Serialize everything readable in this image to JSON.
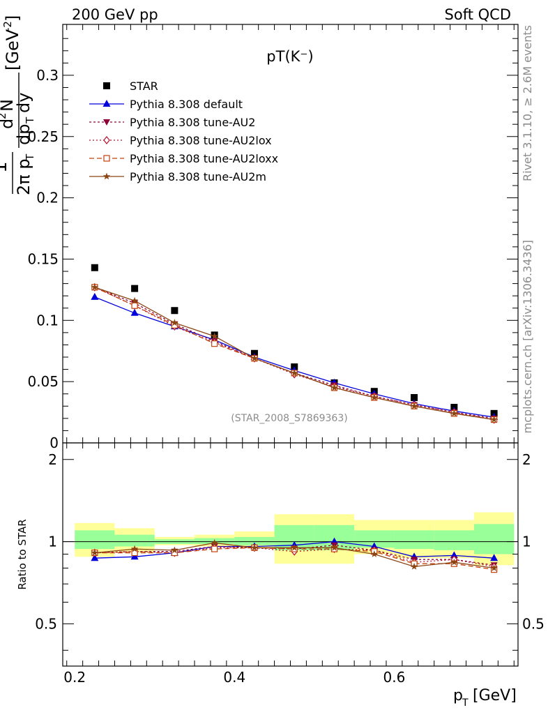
{
  "header": {
    "left": "200 GeV pp",
    "right": "Soft QCD"
  },
  "side_labels": {
    "top": "Rivet 3.1.10, ≥ 2.6M events",
    "bottom": "mcplots.cern.ch [arXiv:1306.3436]"
  },
  "ratio_panel": {
    "ylabel": "Ratio to STAR",
    "yticks": [
      "0.5",
      "1",
      "2"
    ]
  },
  "chart_data": {
    "type": "scatter",
    "title": "pT(K⁻)",
    "watermark": "(STAR_2008_S7869363)",
    "xlabel": "p_T [GeV]",
    "ylabel": "1/(2π p_T) d²N/(dp_T dy) [GeV⁻²]",
    "xlim": [
      0.185,
      0.755
    ],
    "ylim": [
      0,
      0.3415
    ],
    "yticks": [
      "0",
      "0.05",
      "0.1",
      "0.15",
      "0.2",
      "0.25",
      "0.3"
    ],
    "xticks": [
      "0.2",
      "0.4",
      "0.6"
    ],
    "ratio_ylim": [
      0.35,
      2.3
    ],
    "x": [
      0.225,
      0.275,
      0.325,
      0.375,
      0.425,
      0.475,
      0.525,
      0.575,
      0.625,
      0.675,
      0.725
    ],
    "bin_edges": [
      0.2,
      0.25,
      0.3,
      0.35,
      0.4,
      0.45,
      0.5,
      0.55,
      0.6,
      0.65,
      0.7,
      0.75
    ],
    "legend_position": "top-left",
    "series": [
      {
        "name": "STAR",
        "color": "#000000",
        "marker": "square",
        "values": [
          0.143,
          0.126,
          0.108,
          0.088,
          0.073,
          0.062,
          0.049,
          0.042,
          0.037,
          0.029,
          0.024
        ]
      },
      {
        "name": "Pythia 8.308 default",
        "color": "#0000dd",
        "marker": "triangle-up",
        "dash": "",
        "values": [
          0.119,
          0.106,
          0.095,
          0.084,
          0.07,
          0.059,
          0.049,
          0.04,
          0.032,
          0.026,
          0.021
        ]
      },
      {
        "name": "Pythia 8.308 tune-AU2",
        "color": "#8b0037",
        "marker": "triangle-down",
        "dash": "3,3",
        "values": [
          0.127,
          0.114,
          0.097,
          0.083,
          0.069,
          0.057,
          0.047,
          0.038,
          0.031,
          0.025,
          0.02
        ]
      },
      {
        "name": "Pythia 8.308 tune-AU2lox",
        "color": "#b3122e",
        "marker": "diamond",
        "dash": "2,3",
        "values": [
          0.127,
          0.112,
          0.095,
          0.082,
          0.069,
          0.056,
          0.046,
          0.038,
          0.031,
          0.025,
          0.019
        ]
      },
      {
        "name": "Pythia 8.308 tune-AU2loxx",
        "color": "#c4400a",
        "marker": "open-square",
        "dash": "7,4",
        "values": [
          0.127,
          0.112,
          0.096,
          0.081,
          0.069,
          0.057,
          0.045,
          0.037,
          0.03,
          0.024,
          0.019
        ]
      },
      {
        "name": "Pythia 8.308 tune-AU2m",
        "color": "#8b4513",
        "marker": "star",
        "dash": "",
        "values": [
          0.127,
          0.116,
          0.098,
          0.087,
          0.069,
          0.057,
          0.045,
          0.037,
          0.03,
          0.024,
          0.019
        ]
      }
    ],
    "ratio_series": [
      {
        "name": "Pythia 8.308 default",
        "values": [
          0.87,
          0.88,
          0.91,
          0.96,
          0.96,
          0.97,
          1.0,
          0.96,
          0.88,
          0.89,
          0.87
        ]
      },
      {
        "name": "Pythia 8.308 tune-AU2",
        "values": [
          0.91,
          0.92,
          0.92,
          0.96,
          0.95,
          0.94,
          0.97,
          0.93,
          0.86,
          0.86,
          0.82
        ]
      },
      {
        "name": "Pythia 8.308 tune-AU2lox",
        "values": [
          0.91,
          0.92,
          0.91,
          0.95,
          0.95,
          0.92,
          0.94,
          0.93,
          0.84,
          0.86,
          0.81
        ]
      },
      {
        "name": "Pythia 8.308 tune-AU2loxx",
        "values": [
          0.91,
          0.91,
          0.91,
          0.94,
          0.95,
          0.94,
          0.94,
          0.92,
          0.83,
          0.83,
          0.79
        ]
      },
      {
        "name": "Pythia 8.308 tune-AU2m",
        "values": [
          0.91,
          0.94,
          0.93,
          0.99,
          0.95,
          0.95,
          0.95,
          0.9,
          0.81,
          0.84,
          0.8
        ]
      }
    ],
    "band_outer": [
      [
        0.88,
        1.17
      ],
      [
        0.91,
        1.12
      ],
      [
        0.97,
        1.04
      ],
      [
        0.96,
        1.06
      ],
      [
        0.95,
        1.09
      ],
      [
        0.83,
        1.26
      ],
      [
        0.83,
        1.26
      ],
      [
        0.9,
        1.2
      ],
      [
        0.87,
        1.2
      ],
      [
        0.87,
        1.2
      ],
      [
        0.82,
        1.28
      ]
    ],
    "band_inner": [
      [
        0.94,
        1.1
      ],
      [
        0.96,
        1.06
      ],
      [
        0.98,
        1.02
      ],
      [
        0.98,
        1.03
      ],
      [
        0.97,
        1.04
      ],
      [
        0.93,
        1.15
      ],
      [
        0.93,
        1.15
      ],
      [
        0.95,
        1.1
      ],
      [
        0.94,
        1.1
      ],
      [
        0.93,
        1.1
      ],
      [
        0.9,
        1.16
      ]
    ],
    "colors": {
      "band_outer": "#ffff99",
      "band_inner": "#99ff99"
    }
  }
}
